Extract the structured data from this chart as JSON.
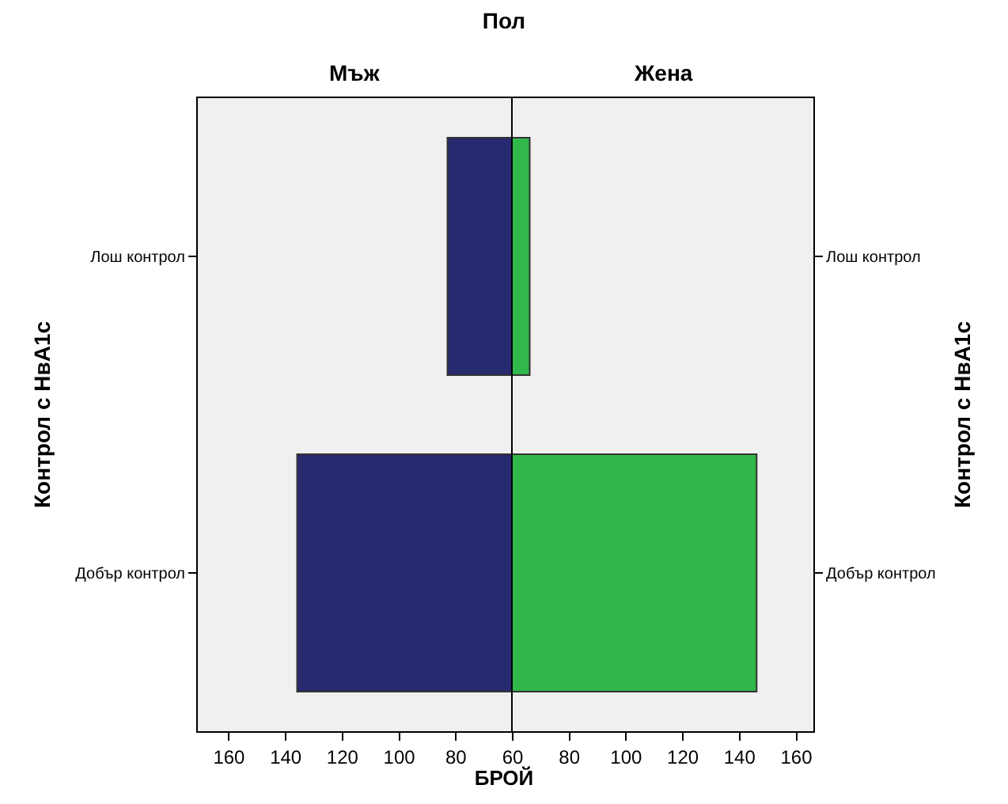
{
  "chart_data": [
    {
      "type": "bar",
      "orientation": "horizontal",
      "title": "Пол",
      "subtitle": "Мъж",
      "xlabel": "БРОЙ",
      "ylabel": "Контрол с НвА1с",
      "categories": [
        "Лош контрол",
        "Добър контрол"
      ],
      "series": [
        {
          "color": "#272a6e",
          "values": [
            83,
            136
          ]
        }
      ],
      "xlim": [
        171,
        60
      ],
      "xticks": [
        160,
        140,
        120,
        100,
        80,
        60
      ]
    },
    {
      "type": "bar",
      "orientation": "horizontal",
      "subtitle": "Жена",
      "ylabel": "Контрол с НвА1с",
      "categories": [
        "Лош контрол",
        "Добър контрол"
      ],
      "series": [
        {
          "color": "#30b84a",
          "values": [
            66,
            146
          ]
        }
      ],
      "xlim": [
        60,
        166
      ],
      "xticks": [
        {
          "value": 60,
          "label": null
        },
        80,
        100,
        120,
        140,
        160
      ]
    }
  ]
}
